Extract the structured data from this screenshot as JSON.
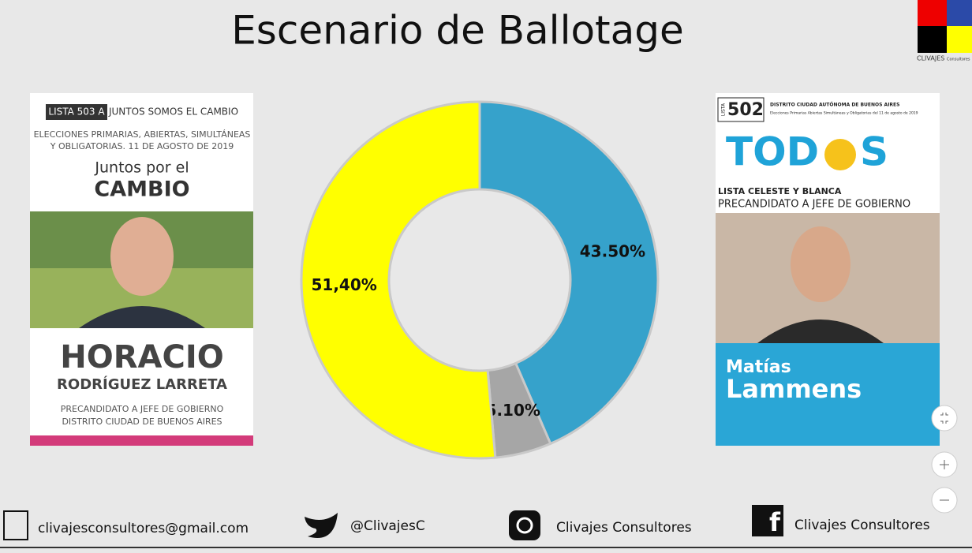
{
  "chart_data": {
    "type": "donut",
    "title": "Escenario de Ballotage",
    "values": [
      43.5,
      5.1,
      51.4
    ],
    "value_labels": [
      "43.50%",
      "5.10%",
      "51,40%"
    ],
    "colors": [
      "#36a2cb",
      "#a6a6a6",
      "#ffff00"
    ]
  },
  "logo": {
    "name": "CLIVAJES",
    "suffix": "Consultores"
  },
  "left_ballot": {
    "list": "LISTA 503 A",
    "front": "JUNTOS SOMOS EL CAMBIO",
    "election_1": "ELECCIONES PRIMARIAS, ABIERTAS, SIMULTÁNEAS",
    "election_2": "Y OBLIGATORIAS. 11 DE AGOSTO DE 2019",
    "party_1": "Juntos por el",
    "party_2": "CAMBIO",
    "name_1": "HORACIO",
    "name_2": "RODRÍGUEZ LARRETA",
    "role": "PRECANDIDATO A JEFE DE GOBIERNO",
    "district": "DISTRITO CIUDAD DE BUENOS AIRES"
  },
  "right_ballot": {
    "list_word": "LISTA",
    "list": "502",
    "district": "DISTRITO CIUDAD AUTÓNOMA DE BUENOS AIRES",
    "election": "Elecciones Primarias Abiertas Simultáneas y Obligatorias del 11 de agosto de 2019",
    "party_1": "TOD",
    "party_2": "S",
    "list_name": "LISTA CELESTE Y BLANCA",
    "role": "PRECANDIDATO A JEFE DE GOBIERNO",
    "name_1": "Matías",
    "name_2": "Lammens"
  },
  "footer": {
    "email": "clivajesconsultores@gmail.com",
    "twitter": "@ClivajesC",
    "instagram": "Clivajes Consultores",
    "facebook": "Clivajes Consultores"
  }
}
